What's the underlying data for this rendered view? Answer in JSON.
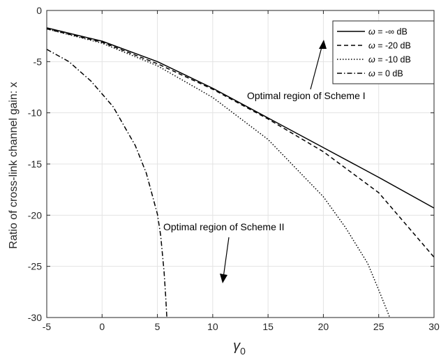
{
  "chart_data": {
    "type": "line",
    "xlabel": "γ",
    "xlabel_sub": "0",
    "ylabel": "Ratio of cross-link channel gain: x",
    "xlim": [
      -5,
      30
    ],
    "ylim": [
      -30,
      0
    ],
    "xticks": [
      -5,
      0,
      5,
      10,
      15,
      20,
      25,
      30
    ],
    "yticks": [
      0,
      -5,
      -10,
      -15,
      -20,
      -25,
      -30
    ],
    "grid": true,
    "legend_position": "top-right",
    "series": [
      {
        "name": "ω = -∞ dB",
        "label_symbol": "ω",
        "label_value": "= -∞ dB",
        "dash": "solid",
        "x": [
          -5,
          0,
          5,
          10,
          15,
          20,
          25,
          30
        ],
        "y": [
          -1.7,
          -3.0,
          -5.0,
          -7.6,
          -10.5,
          -13.4,
          -16.3,
          -19.3
        ]
      },
      {
        "name": "ω = -20 dB",
        "label_symbol": "ω",
        "label_value": "= -20 dB",
        "dash": "dashed",
        "x": [
          -5,
          0,
          5,
          10,
          15,
          20,
          25,
          30
        ],
        "y": [
          -1.8,
          -3.1,
          -5.2,
          -7.7,
          -10.6,
          -13.8,
          -17.8,
          -24.1
        ]
      },
      {
        "name": "ω = -10 dB",
        "label_symbol": "ω",
        "label_value": "= -10 dB",
        "dash": "dotted",
        "x": [
          -5,
          0,
          5,
          10,
          15,
          20,
          22,
          24,
          25,
          26
        ],
        "y": [
          -1.8,
          -3.2,
          -5.4,
          -8.5,
          -12.6,
          -18.2,
          -21.2,
          -24.7,
          -27.3,
          -30
        ]
      },
      {
        "name": "ω = 0 dB",
        "label_symbol": "ω",
        "label_value": "=    0 dB",
        "dash": "dashdot",
        "x": [
          -5,
          -3,
          -1,
          1,
          3,
          4,
          5,
          5.3,
          5.6,
          5.75,
          5.85
        ],
        "y": [
          -3.8,
          -5.0,
          -6.9,
          -9.4,
          -13.2,
          -15.9,
          -19.9,
          -22.0,
          -25.5,
          -28.0,
          -30
        ]
      }
    ],
    "annotations": [
      {
        "text": "Optimal region of Scheme I"
      },
      {
        "text": "Optimal region of Scheme II"
      }
    ]
  }
}
